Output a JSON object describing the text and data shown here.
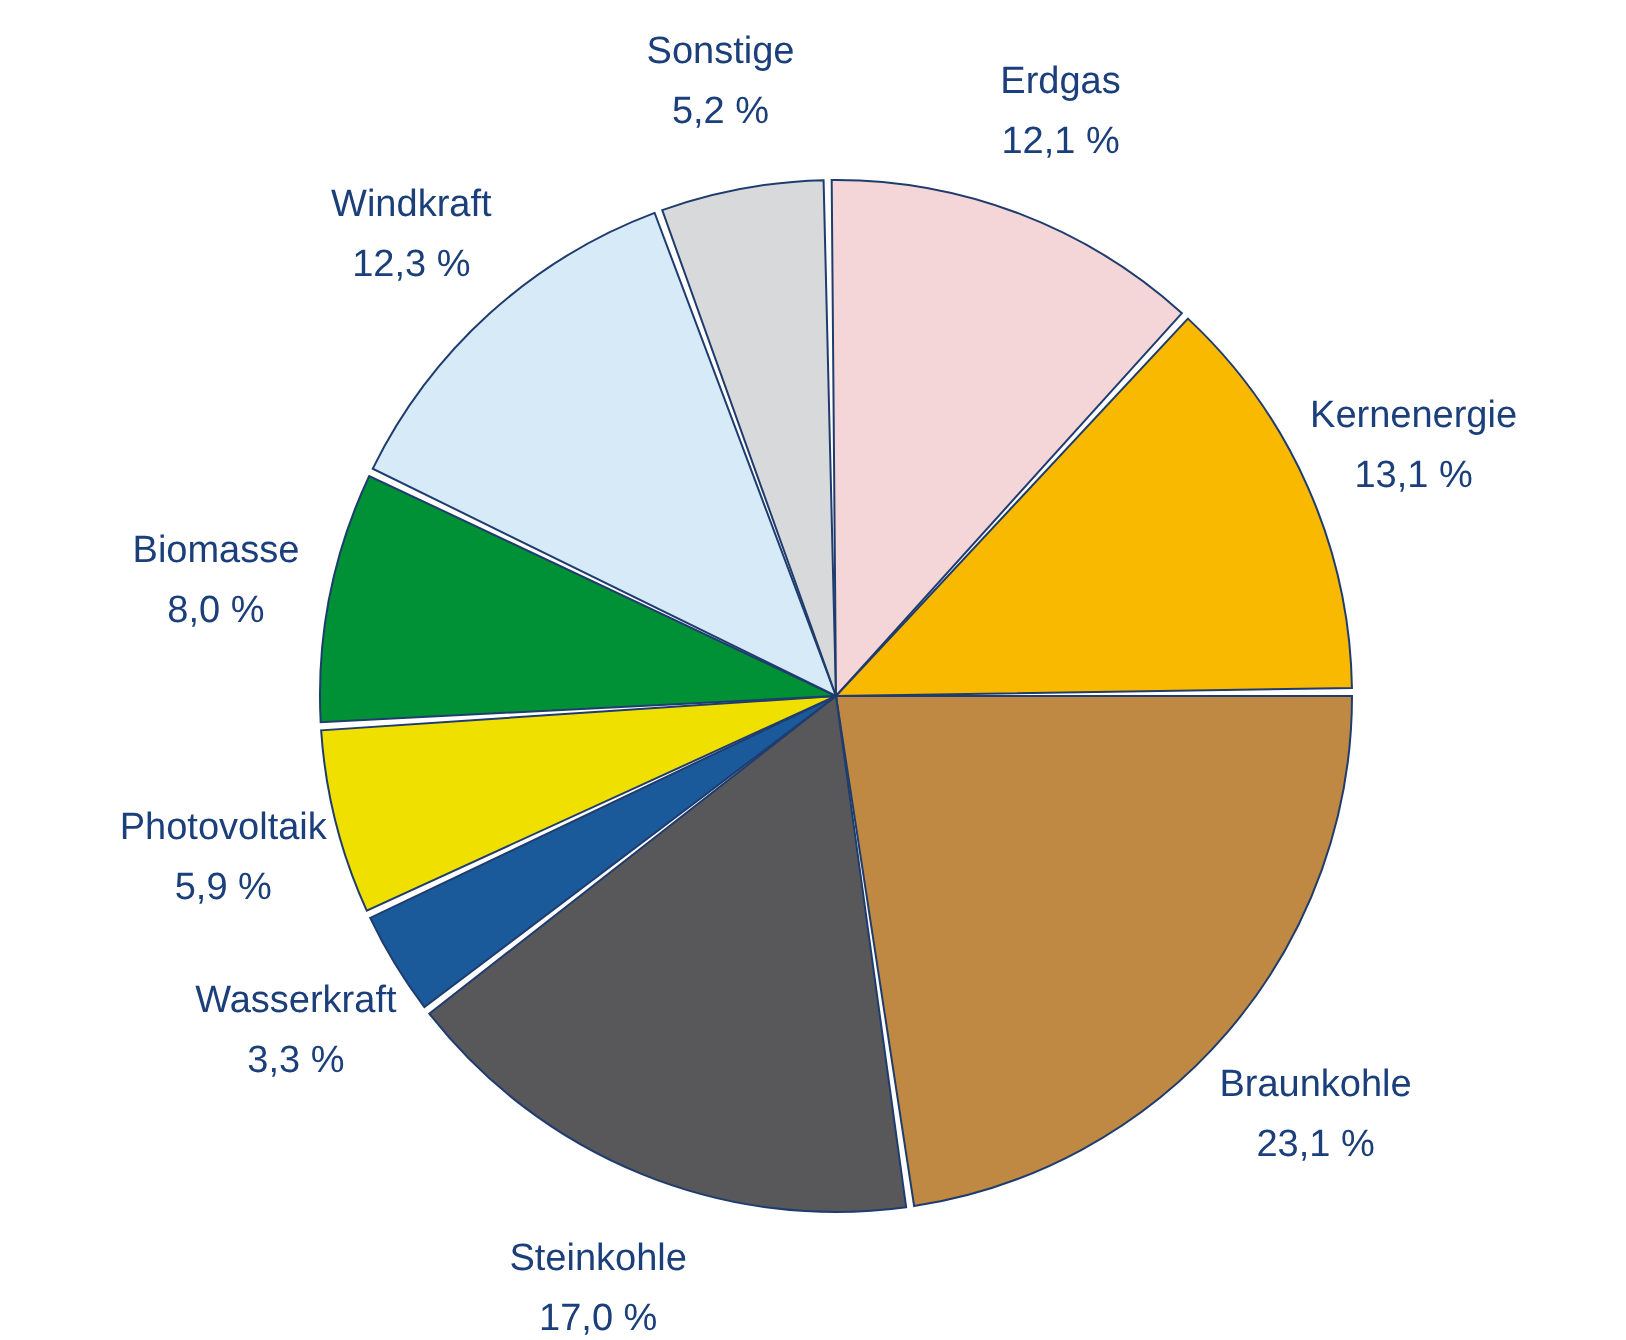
{
  "chart_data": {
    "type": "pie",
    "categories": [
      "Braunkohle",
      "Steinkohle",
      "Wasserkraft",
      "Photovoltaik",
      "Biomasse",
      "Windkraft",
      "Sonstige",
      "Erdgas",
      "Kernenergie"
    ],
    "values": [
      23.1,
      17.0,
      3.3,
      5.9,
      8.0,
      12.3,
      5.2,
      12.1,
      13.1
    ],
    "value_labels": [
      "23,1 %",
      "17,0 %",
      "3,3 %",
      "5,9 %",
      "8,0 %",
      "12,3 %",
      "5,2 %",
      "12,1 %",
      "13,1 %"
    ],
    "colors": [
      "#bf8843",
      "#58585a",
      "#1a5a9a",
      "#f0e000",
      "#009036",
      "#d6eaf8",
      "#d8d9db",
      "#f5d6d8",
      "#f9b900"
    ],
    "legend": false
  }
}
